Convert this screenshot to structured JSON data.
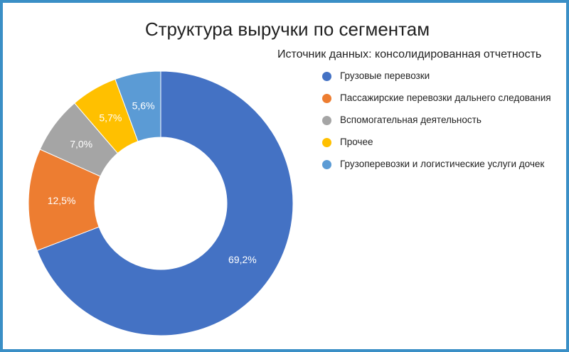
{
  "chart_data": {
    "type": "pie",
    "variant": "donut",
    "title": "Структура выручки по сегментам",
    "subtitle": "Источник данных: консолидированная отчетность",
    "legend_position": "right",
    "series": [
      {
        "name": "Грузовые перевозки",
        "value": 69.2,
        "label": "69,2%",
        "color": "#4472c4"
      },
      {
        "name": "Пассажирские перевозки дальнего следования",
        "value": 12.5,
        "label": "12,5%",
        "color": "#ed7d31"
      },
      {
        "name": "Вспомогательная деятельность",
        "value": 7.0,
        "label": "7,0%",
        "color": "#a5a5a5"
      },
      {
        "name": "Прочее",
        "value": 5.7,
        "label": "5,7%",
        "color": "#ffc000"
      },
      {
        "name": "Грузоперевозки и логистические услуги дочек",
        "value": 5.6,
        "label": "5,6%",
        "color": "#5b9bd5"
      }
    ]
  }
}
